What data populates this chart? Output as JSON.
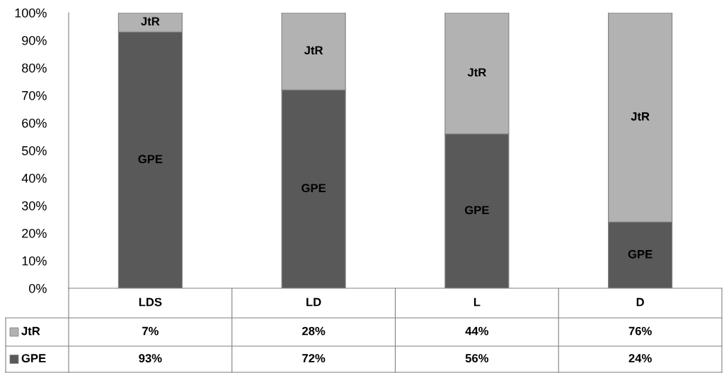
{
  "chart_data": {
    "type": "bar",
    "stacked": true,
    "categories": [
      "LDS",
      "LD",
      "L",
      "D"
    ],
    "series": [
      {
        "name": "GPE",
        "color": "#595959",
        "values": [
          93,
          72,
          56,
          24
        ],
        "value_labels": [
          "93%",
          "72%",
          "56%",
          "24%"
        ]
      },
      {
        "name": "JtR",
        "color": "#b2b2b2",
        "values": [
          7,
          28,
          44,
          76
        ],
        "value_labels": [
          "7%",
          "28%",
          "44%",
          "76%"
        ]
      }
    ],
    "ylim": [
      0,
      100
    ],
    "yticks": [
      {
        "value": 0,
        "label": "0%"
      },
      {
        "value": 10,
        "label": "10%"
      },
      {
        "value": 20,
        "label": "20%"
      },
      {
        "value": 30,
        "label": "30%"
      },
      {
        "value": 40,
        "label": "40%"
      },
      {
        "value": 50,
        "label": "50%"
      },
      {
        "value": 60,
        "label": "60%"
      },
      {
        "value": 70,
        "label": "70%"
      },
      {
        "value": 80,
        "label": "80%"
      },
      {
        "value": 90,
        "label": "90%"
      },
      {
        "value": 100,
        "label": "100%"
      }
    ],
    "grid": false,
    "legend": "bottom left"
  }
}
